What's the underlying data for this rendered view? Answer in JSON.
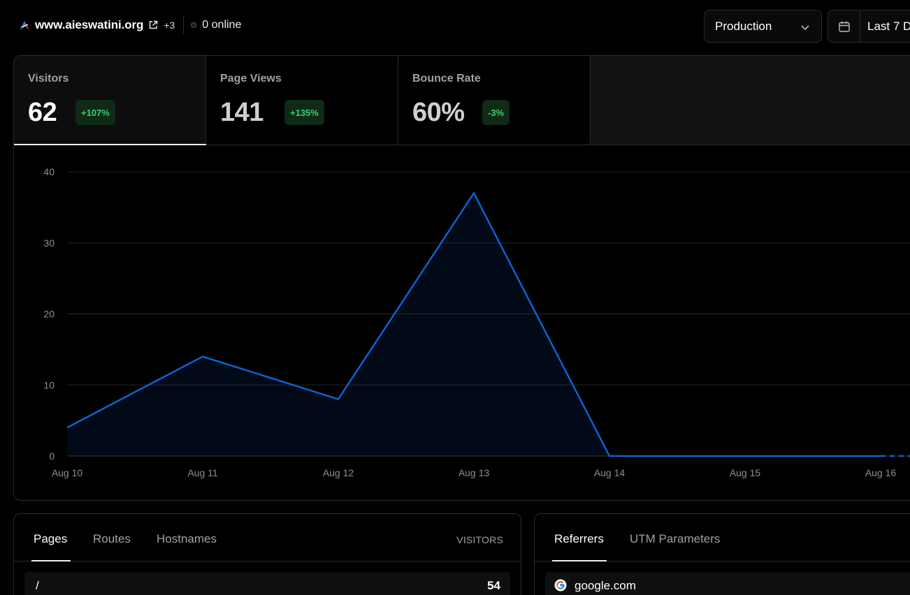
{
  "header": {
    "site_name": "www.aieswatini.org",
    "extra_sites": "+3",
    "online_status": "0 online",
    "environment": "Production",
    "date_range": "Last 7 D"
  },
  "metrics": [
    {
      "label": "Visitors",
      "value": "62",
      "change": "+107%"
    },
    {
      "label": "Page Views",
      "value": "141",
      "change": "+135%"
    },
    {
      "label": "Bounce Rate",
      "value": "60%",
      "change": "-3%"
    }
  ],
  "chart_data": {
    "type": "area",
    "x": [
      "Aug 10",
      "Aug 11",
      "Aug 12",
      "Aug 13",
      "Aug 14",
      "Aug 15",
      "Aug 16"
    ],
    "series": [
      {
        "values": [
          4,
          14,
          8,
          37,
          0,
          0,
          0
        ]
      }
    ],
    "y_ticks": [
      0,
      10,
      20,
      30,
      40
    ],
    "ylim": [
      0,
      40
    ],
    "grid": true,
    "color": "#0b65d8"
  },
  "pages_card": {
    "tabs": [
      "Pages",
      "Routes",
      "Hostnames"
    ],
    "column_header": "VISITORS",
    "rows": [
      {
        "label": "/",
        "value": "54"
      }
    ]
  },
  "referrers_card": {
    "tabs": [
      "Referrers",
      "UTM Parameters"
    ],
    "rows": [
      {
        "label": "google.com",
        "icon": "google-icon"
      }
    ]
  },
  "colors": {
    "accent_line": "#0b65d8",
    "badge_bg": "#0f2a17",
    "badge_text": "#3ecf6e"
  }
}
